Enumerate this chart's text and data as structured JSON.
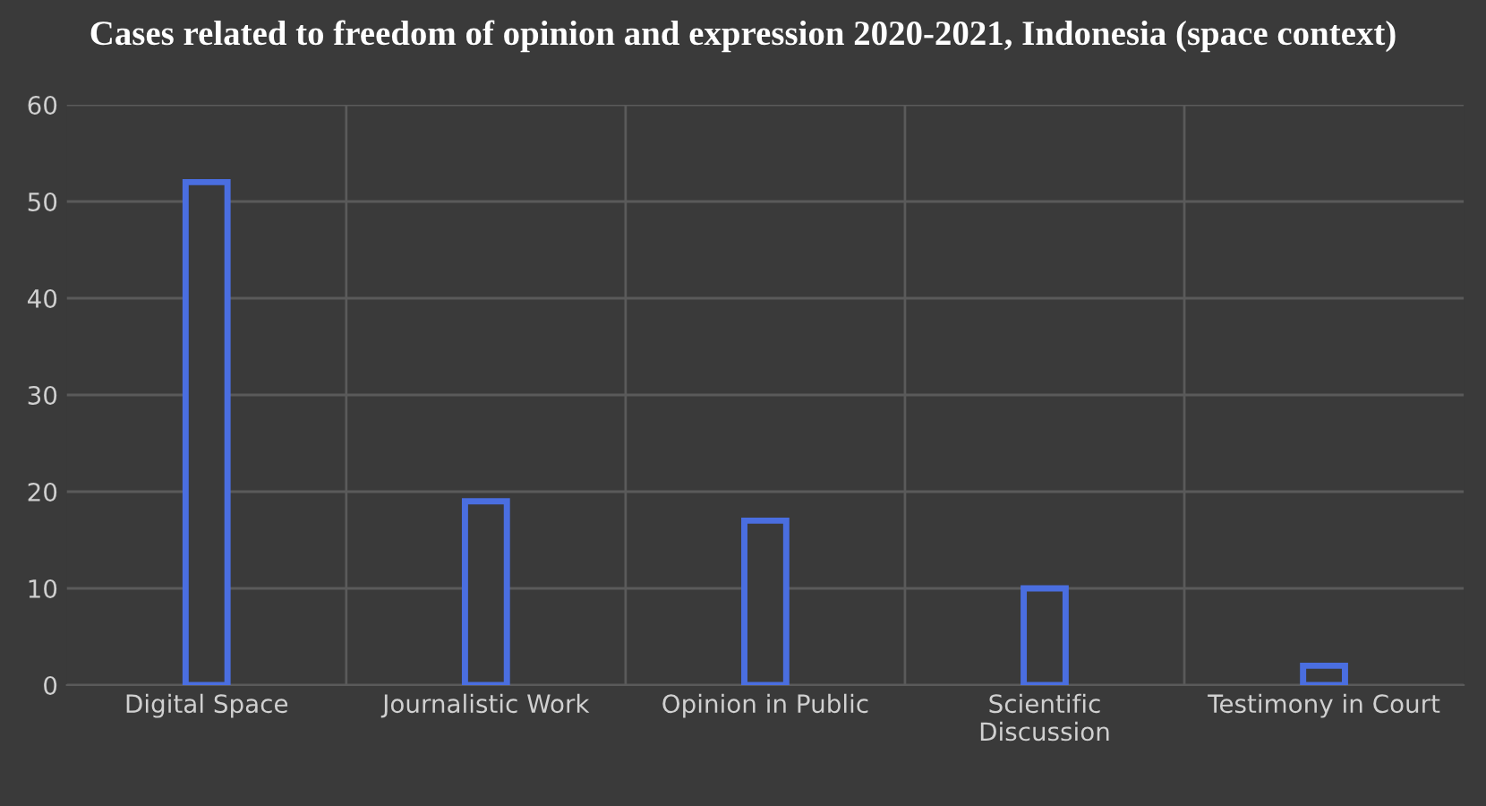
{
  "chart_data": {
    "type": "bar",
    "title": "Cases related to freedom of opinion and expression 2020-2021, Indonesia (space context)",
    "categories": [
      "Digital Space",
      "Journalistic Work",
      "Opinion in Public",
      "Scientific\nDiscussion",
      "Testimony in Court"
    ],
    "values": [
      52,
      19,
      17,
      10,
      2
    ],
    "color": "#4a6ee0",
    "ylim": [
      0,
      60
    ],
    "yticks": [
      0,
      10,
      20,
      30,
      40,
      50,
      60
    ],
    "grid": true
  }
}
